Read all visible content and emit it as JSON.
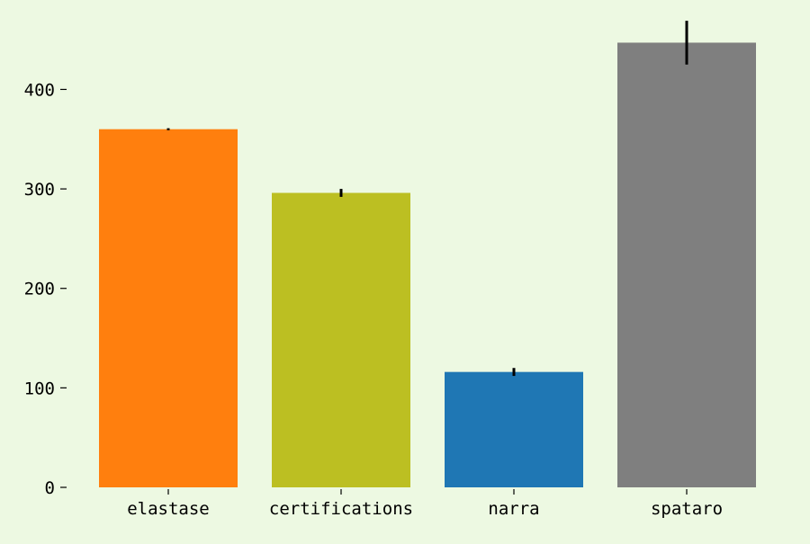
{
  "chart_data": {
    "type": "bar",
    "title": "",
    "xlabel": "",
    "ylabel": "",
    "categories": [
      "elastase",
      "certifications",
      "narra",
      "spataro"
    ],
    "values": [
      360,
      296,
      116,
      447
    ],
    "errors": [
      1,
      4,
      4,
      22
    ],
    "colors": [
      "#ff7f0e",
      "#bcbf22",
      "#1f77b4",
      "#7f7f7f"
    ],
    "ylim": [
      0,
      470
    ],
    "yticks": [
      0,
      100,
      200,
      300,
      400
    ],
    "ytick_labels": [
      "0",
      "100",
      "200",
      "300",
      "400"
    ],
    "grid": false,
    "legend": "none",
    "background": "#edf9e2",
    "error_color": "#000000"
  }
}
